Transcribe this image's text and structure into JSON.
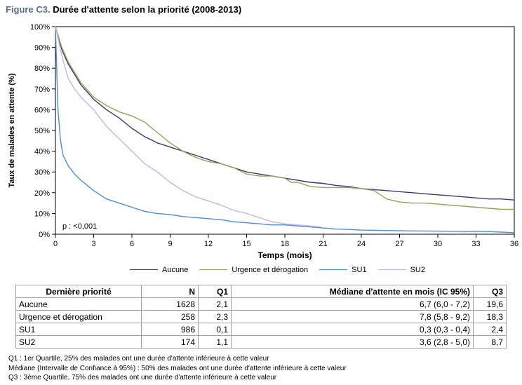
{
  "title": {
    "prefix": "Figure C3.",
    "text": "Durée d'attente selon la priorité (2008-2013)"
  },
  "chart_data": {
    "type": "line",
    "xlabel": "Temps (mois)",
    "ylabel": "Taux de malades en attente (%)",
    "xlim": [
      0,
      36
    ],
    "ylim": [
      0,
      100
    ],
    "x_ticks": [
      0,
      3,
      6,
      9,
      12,
      15,
      18,
      21,
      24,
      27,
      30,
      33,
      36
    ],
    "y_ticks": [
      "0%",
      "10%",
      "20%",
      "30%",
      "40%",
      "50%",
      "60%",
      "70%",
      "80%",
      "90%",
      "100%"
    ],
    "annotation": "p : <0,001",
    "grid": false,
    "legend_position": "bottom",
    "series": [
      {
        "name": "Aucune",
        "color": "#3b3a6e",
        "x": [
          0,
          0.5,
          1,
          2,
          3,
          4,
          5,
          6,
          7,
          8,
          9,
          10,
          11,
          12,
          13,
          14,
          15,
          16,
          17,
          18,
          19,
          20,
          21,
          22,
          23,
          24,
          25,
          26,
          27,
          28,
          29,
          30,
          31,
          32,
          33,
          34,
          35,
          36
        ],
        "y": [
          100,
          89,
          82,
          72,
          65,
          60,
          56,
          51,
          47,
          44,
          42,
          40,
          38,
          36,
          34,
          32,
          30,
          29,
          28,
          27,
          26,
          25,
          24.5,
          23.5,
          23,
          22,
          21.5,
          21,
          20.5,
          20,
          19.5,
          19,
          18.5,
          18,
          17.5,
          17,
          17,
          16.5
        ]
      },
      {
        "name": "Urgence et dérogation",
        "color": "#8fa55a",
        "x": [
          0,
          0.5,
          1,
          2,
          3,
          4,
          5,
          6,
          7,
          8,
          9,
          10,
          11,
          12,
          13,
          14,
          15,
          16,
          17,
          18,
          18.5,
          19,
          20,
          21,
          22,
          23,
          24,
          25,
          25.5,
          26,
          27,
          28,
          29,
          30,
          31,
          32,
          33,
          34,
          35,
          36
        ],
        "y": [
          100,
          90,
          83,
          73,
          66,
          62,
          59,
          57,
          54,
          49,
          44,
          40,
          37,
          35,
          34,
          32,
          29,
          28,
          28,
          27,
          25,
          25,
          23,
          22.5,
          22.5,
          22.5,
          22,
          21,
          19,
          17,
          15.5,
          15,
          15,
          14.5,
          14,
          13.5,
          13,
          12.5,
          12,
          12
        ]
      },
      {
        "name": "SU1",
        "color": "#4a8fd6",
        "x": [
          0,
          0.2,
          0.4,
          0.6,
          1,
          1.5,
          2,
          3,
          4,
          5,
          6,
          7,
          8,
          9,
          10,
          11,
          12,
          13,
          14,
          15,
          16,
          17,
          18,
          19,
          20,
          21,
          22,
          23,
          24,
          26,
          28,
          30,
          32,
          34,
          35,
          36
        ],
        "y": [
          100,
          60,
          45,
          38,
          33,
          29,
          26,
          21,
          17,
          15,
          13,
          11,
          10,
          9.5,
          8.5,
          8,
          7.5,
          7,
          6,
          5.5,
          5,
          4.5,
          4.5,
          4,
          3.5,
          3,
          2.5,
          2.3,
          2,
          1.8,
          1.6,
          1.5,
          1.4,
          1.3,
          1,
          0.7
        ]
      },
      {
        "name": "SU2",
        "color": "#c9b3e3",
        "x": [
          0,
          0.5,
          1,
          1.5,
          2,
          3,
          4,
          5,
          6,
          7,
          8,
          9,
          10,
          11,
          12,
          13,
          14,
          15,
          16,
          17,
          18,
          19,
          20,
          20.8
        ],
        "y": [
          100,
          86,
          75,
          70,
          66,
          60,
          52,
          46,
          40,
          34,
          30,
          25,
          21,
          18,
          16,
          14,
          11.5,
          10,
          8,
          6,
          5,
          4.5,
          4,
          3.5
        ]
      }
    ]
  },
  "table": {
    "headers": [
      "Dernière priorité",
      "N",
      "Q1",
      "Médiane d'attente en mois (IC 95%)",
      "Q3"
    ],
    "rows": [
      [
        "Aucune",
        "1628",
        "2,1",
        "6,7 (6,0 - 7,2)",
        "19,6"
      ],
      [
        "Urgence et dérogation",
        "258",
        "2,3",
        "7,8 (5,8 - 9,2)",
        "18,3"
      ],
      [
        "SU1",
        "986",
        "0,1",
        "0,3 (0,3 - 0,4)",
        "2,4"
      ],
      [
        "SU2",
        "174",
        "1,1",
        "3,6 (2,8 - 5,0)",
        "8,7"
      ]
    ]
  },
  "notes": [
    "Q1 : 1er Quartile, 25% des malades ont une durée d'attente inférieure à cette valeur",
    "Médiane (Intervalle de Confiance à 95%) : 50% des malades ont une durée d'attente inférieure à cette valeur",
    "Q3 : 3ème Quartile, 75% des malades ont une durée d'attente inférieure à cette valeur"
  ]
}
